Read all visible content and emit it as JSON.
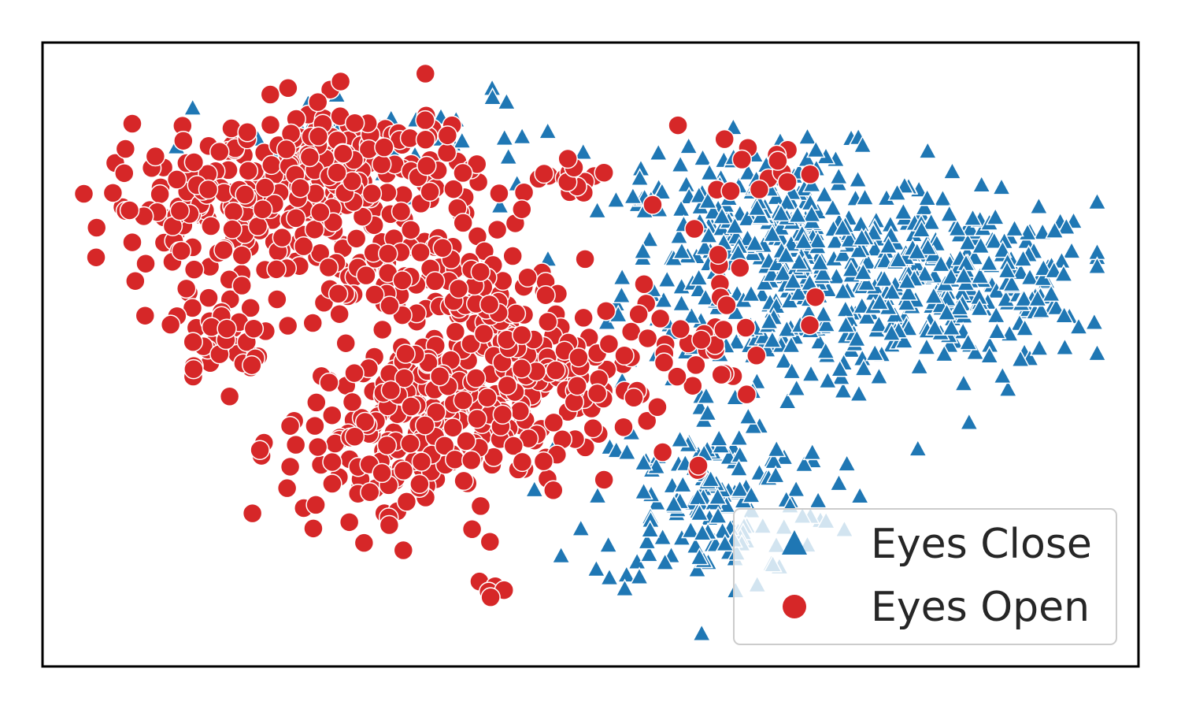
{
  "chart_data": {
    "type": "scatter",
    "title": "",
    "xlabel": "",
    "ylabel": "",
    "xlim": [
      0,
      100
    ],
    "ylim": [
      0,
      100
    ],
    "grid": false,
    "ticks": false,
    "legend_position": "bottom-right",
    "series": [
      {
        "name": "Eyes Close",
        "marker": "triangle",
        "color": "#1f77b4",
        "clusters": [
          {
            "cx": 69,
            "cy": 64,
            "sx": 8.0,
            "sy": 10.0,
            "n": 330
          },
          {
            "cx": 86,
            "cy": 62,
            "sx": 7.0,
            "sy": 7.0,
            "n": 270
          },
          {
            "cx": 62,
            "cy": 25,
            "sx": 6.0,
            "sy": 8.0,
            "n": 160
          },
          {
            "cx": 65,
            "cy": 75,
            "sx": 5.0,
            "sy": 5.0,
            "n": 90
          },
          {
            "cx": 32,
            "cy": 85,
            "sx": 10.0,
            "sy": 5.0,
            "n": 55
          }
        ]
      },
      {
        "name": "Eyes Open",
        "marker": "circle",
        "color": "#d62728",
        "clusters": [
          {
            "cx": 14,
            "cy": 75,
            "sx": 5.5,
            "sy": 6.5,
            "n": 150
          },
          {
            "cx": 27,
            "cy": 80,
            "sx": 6.0,
            "sy": 7.0,
            "n": 190
          },
          {
            "cx": 43,
            "cy": 46,
            "sx": 7.5,
            "sy": 7.0,
            "n": 220
          },
          {
            "cx": 31,
            "cy": 35,
            "sx": 5.5,
            "sy": 8.0,
            "n": 170
          },
          {
            "cx": 35,
            "cy": 62,
            "sx": 6.0,
            "sy": 5.0,
            "n": 90
          },
          {
            "cx": 14,
            "cy": 53,
            "sx": 2.5,
            "sy": 4.0,
            "n": 32
          },
          {
            "cx": 63,
            "cy": 52,
            "sx": 1.5,
            "sy": 10.0,
            "n": 22
          },
          {
            "cx": 49,
            "cy": 80,
            "sx": 2.5,
            "sy": 2.0,
            "n": 16
          },
          {
            "cx": 67,
            "cy": 83,
            "sx": 2.5,
            "sy": 3.0,
            "n": 14
          },
          {
            "cx": 40,
            "cy": 10,
            "sx": 1.0,
            "sy": 1.0,
            "n": 6
          },
          {
            "cx": 71,
            "cy": 55,
            "sx": 0.4,
            "sy": 0.4,
            "n": 1
          },
          {
            "cx": 72,
            "cy": 60,
            "sx": 0.4,
            "sy": 0.4,
            "n": 1
          }
        ]
      }
    ],
    "legend": [
      {
        "label": "Eyes Close",
        "marker": "triangle",
        "color": "#1f77b4"
      },
      {
        "label": "Eyes Open",
        "marker": "circle",
        "color": "#d62728"
      }
    ]
  }
}
